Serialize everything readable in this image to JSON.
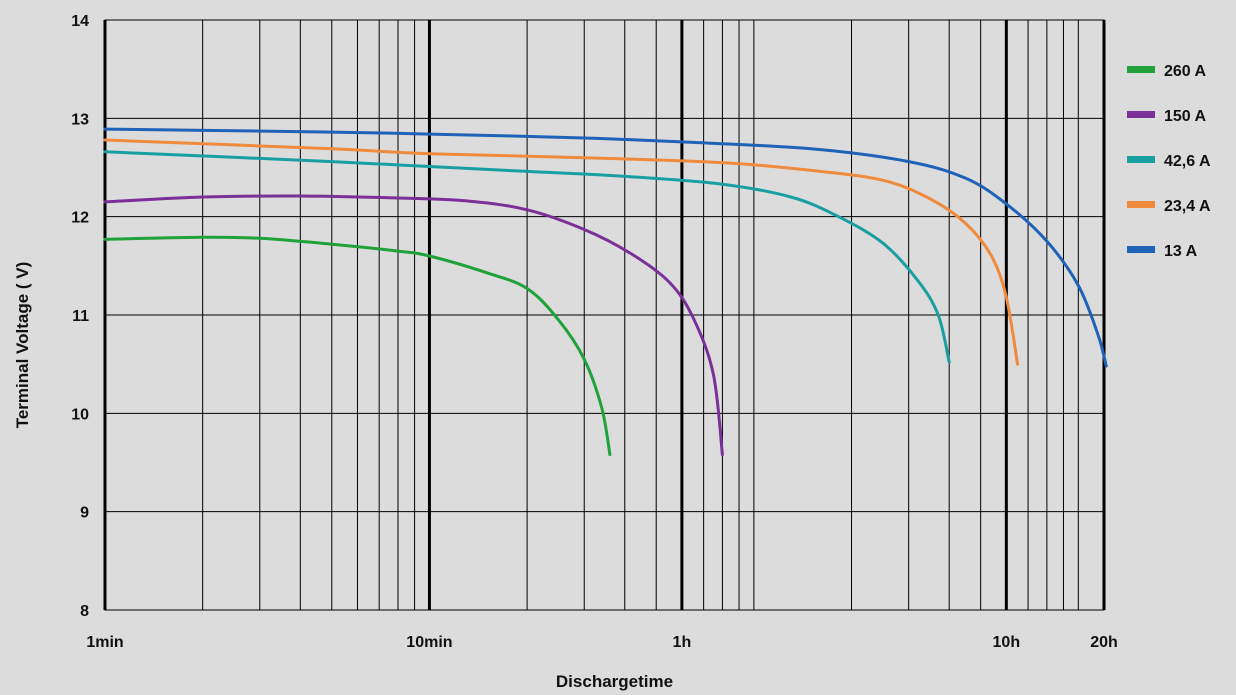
{
  "chart_data": {
    "type": "line",
    "title": "",
    "xlabel": "Dischargetime",
    "ylabel": "Terminal Voltage ( V)",
    "x_scale": "log",
    "x_unit": "minutes",
    "xlim": [
      1,
      1200
    ],
    "ylim": [
      8,
      14
    ],
    "grid": true,
    "legend_position": "right",
    "x_ticks": [
      {
        "value": 1,
        "label": "1min"
      },
      {
        "value": 10,
        "label": "10min"
      },
      {
        "value": 60,
        "label": "1h"
      },
      {
        "value": 600,
        "label": "10h"
      },
      {
        "value": 1200,
        "label": "20h"
      }
    ],
    "y_ticks": [
      {
        "value": 8,
        "label": "8"
      },
      {
        "value": 9,
        "label": "9"
      },
      {
        "value": 10,
        "label": "10"
      },
      {
        "value": 11,
        "label": "11"
      },
      {
        "value": 12,
        "label": "12"
      },
      {
        "value": 13,
        "label": "13"
      },
      {
        "value": 14,
        "label": "14"
      }
    ],
    "series": [
      {
        "name": "260 A",
        "color": "#1fa23a",
        "points": [
          [
            1,
            11.77
          ],
          [
            2,
            11.79
          ],
          [
            3,
            11.78
          ],
          [
            5,
            11.72
          ],
          [
            8,
            11.65
          ],
          [
            10,
            11.6
          ],
          [
            15,
            11.43
          ],
          [
            20,
            11.27
          ],
          [
            25,
            10.95
          ],
          [
            30,
            10.55
          ],
          [
            34,
            10.05
          ],
          [
            36,
            9.58
          ]
        ]
      },
      {
        "name": "150 A",
        "color": "#7a2f99",
        "points": [
          [
            1,
            12.15
          ],
          [
            2,
            12.2
          ],
          [
            4,
            12.21
          ],
          [
            8,
            12.19
          ],
          [
            13,
            12.16
          ],
          [
            20,
            12.07
          ],
          [
            30,
            11.87
          ],
          [
            42,
            11.62
          ],
          [
            55,
            11.33
          ],
          [
            65,
            10.97
          ],
          [
            75,
            10.4
          ],
          [
            80,
            9.58
          ]
        ]
      },
      {
        "name": "42,6 A",
        "color": "#1a9fa0",
        "points": [
          [
            1,
            12.66
          ],
          [
            5,
            12.56
          ],
          [
            10,
            12.51
          ],
          [
            20,
            12.46
          ],
          [
            40,
            12.41
          ],
          [
            80,
            12.33
          ],
          [
            130,
            12.2
          ],
          [
            180,
            12.01
          ],
          [
            250,
            11.73
          ],
          [
            320,
            11.35
          ],
          [
            370,
            11.0
          ],
          [
            400,
            10.52
          ]
        ]
      },
      {
        "name": "23,4 A",
        "color": "#f08a3c",
        "points": [
          [
            1,
            12.78
          ],
          [
            5,
            12.69
          ],
          [
            10,
            12.64
          ],
          [
            30,
            12.6
          ],
          [
            80,
            12.55
          ],
          [
            150,
            12.47
          ],
          [
            250,
            12.37
          ],
          [
            350,
            12.18
          ],
          [
            450,
            11.93
          ],
          [
            540,
            11.6
          ],
          [
            600,
            11.18
          ],
          [
            650,
            10.5
          ]
        ]
      },
      {
        "name": "13 A",
        "color": "#1f63b8",
        "points": [
          [
            1,
            12.89
          ],
          [
            5,
            12.86
          ],
          [
            10,
            12.84
          ],
          [
            30,
            12.8
          ],
          [
            60,
            12.76
          ],
          [
            150,
            12.69
          ],
          [
            300,
            12.56
          ],
          [
            450,
            12.39
          ],
          [
            600,
            12.13
          ],
          [
            800,
            11.75
          ],
          [
            1000,
            11.3
          ],
          [
            1150,
            10.8
          ],
          [
            1220,
            10.48
          ]
        ]
      }
    ]
  }
}
